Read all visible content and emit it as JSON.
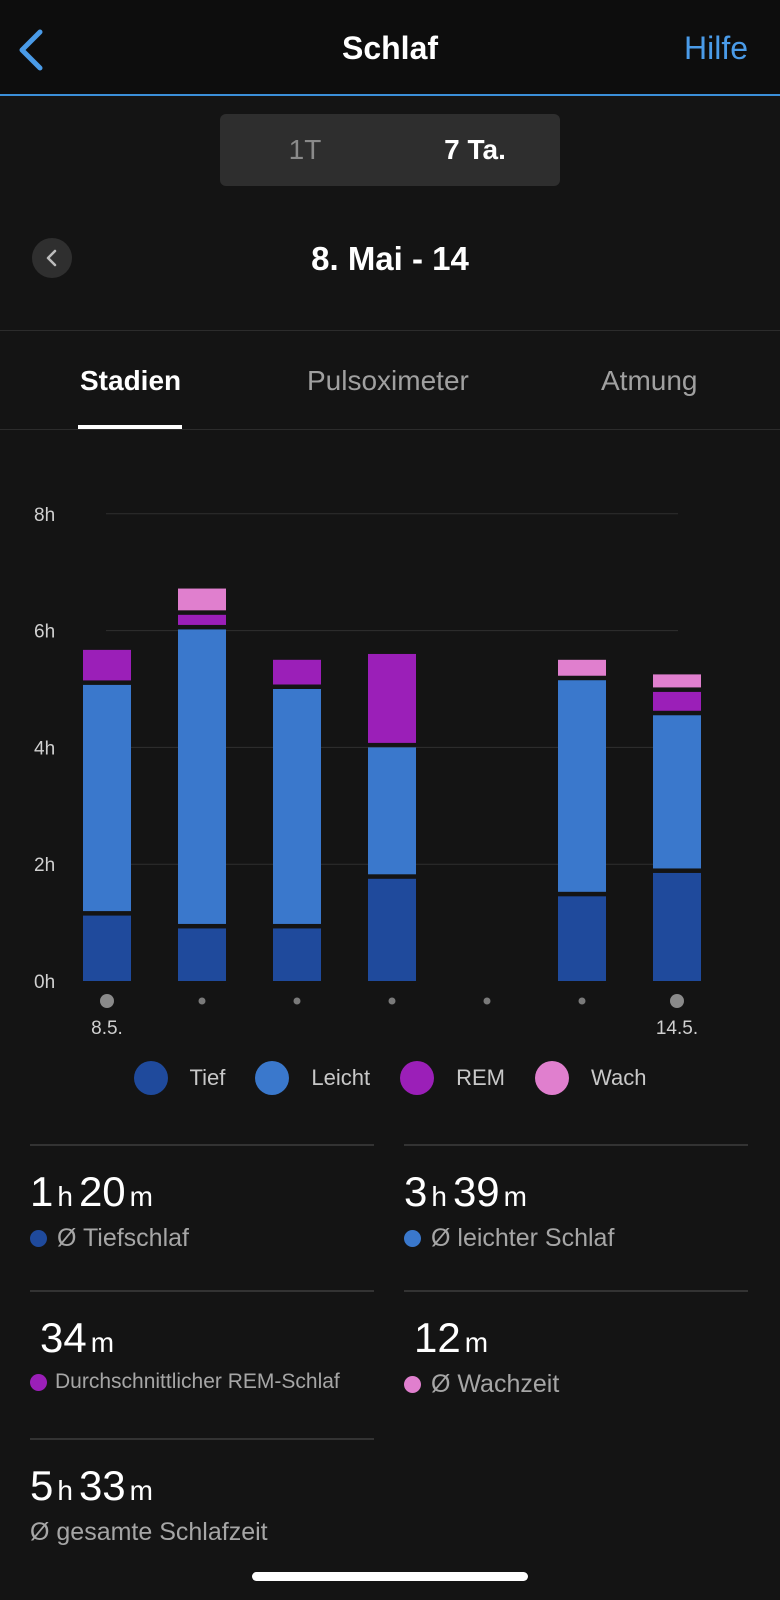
{
  "header": {
    "title": "Schlaf",
    "help_label": "Hilfe"
  },
  "range_toggle": {
    "options": [
      "1T",
      "7 Ta."
    ],
    "selected": "7 Ta."
  },
  "date_range": {
    "label": "8. Mai - 14"
  },
  "tabs": [
    {
      "label": "Stadien",
      "active": true
    },
    {
      "label": "Pulsoximeter",
      "active": false
    },
    {
      "label": "Atmung",
      "active": false
    }
  ],
  "chart_data": {
    "type": "bar",
    "stacked": true,
    "categories": [
      "8.5.",
      "9.5.",
      "10.5.",
      "11.5.",
      "12.5.",
      "13.5.",
      "14.5."
    ],
    "x_tick_labels": [
      "8.5.",
      "",
      "",
      "",
      "",
      "",
      "14.5."
    ],
    "y_ticks": [
      "0h",
      "2h",
      "4h",
      "6h",
      "8h"
    ],
    "ylim": [
      0,
      8
    ],
    "grid": true,
    "legend_position": "bottom",
    "series": [
      {
        "name": "Tief",
        "color": "#1f4a9c",
        "values": [
          1.12,
          0.9,
          0.9,
          1.75,
          0,
          1.45,
          1.85
        ]
      },
      {
        "name": "Leicht",
        "color": "#3a78cc",
        "values": [
          3.95,
          5.12,
          4.1,
          2.25,
          0,
          3.7,
          2.7
        ]
      },
      {
        "name": "REM",
        "color": "#9b1fb8",
        "values": [
          0.6,
          0.25,
          0.5,
          1.6,
          0,
          0,
          0.4
        ]
      },
      {
        "name": "Wach",
        "color": "#e07fce",
        "values": [
          0,
          0.45,
          0,
          0,
          0,
          0.35,
          0.3
        ]
      }
    ]
  },
  "legend": [
    {
      "name": "Tief",
      "color": "#1f4a9c"
    },
    {
      "name": "Leicht",
      "color": "#3a78cc"
    },
    {
      "name": "REM",
      "color": "#9b1fb8"
    },
    {
      "name": "Wach",
      "color": "#e07fce"
    }
  ],
  "stats": {
    "deep": {
      "h": "1",
      "h_unit": "h",
      "m": "20",
      "m_unit": "m",
      "label": "Ø Tiefschlaf",
      "color": "#1f4a9c"
    },
    "light": {
      "h": "3",
      "h_unit": "h",
      "m": "39",
      "m_unit": "m",
      "label": "Ø leichter Schlaf",
      "color": "#3a78cc"
    },
    "rem": {
      "m": "34",
      "m_unit": "m",
      "label": "Durchschnittlicher REM-Schlaf",
      "color": "#9b1fb8"
    },
    "awake": {
      "m": "12",
      "m_unit": "m",
      "label": "Ø Wachzeit",
      "color": "#e07fce"
    },
    "total": {
      "h": "5",
      "h_unit": "h",
      "m": "33",
      "m_unit": "m",
      "label": "Ø gesamte Schlafzeit"
    }
  }
}
